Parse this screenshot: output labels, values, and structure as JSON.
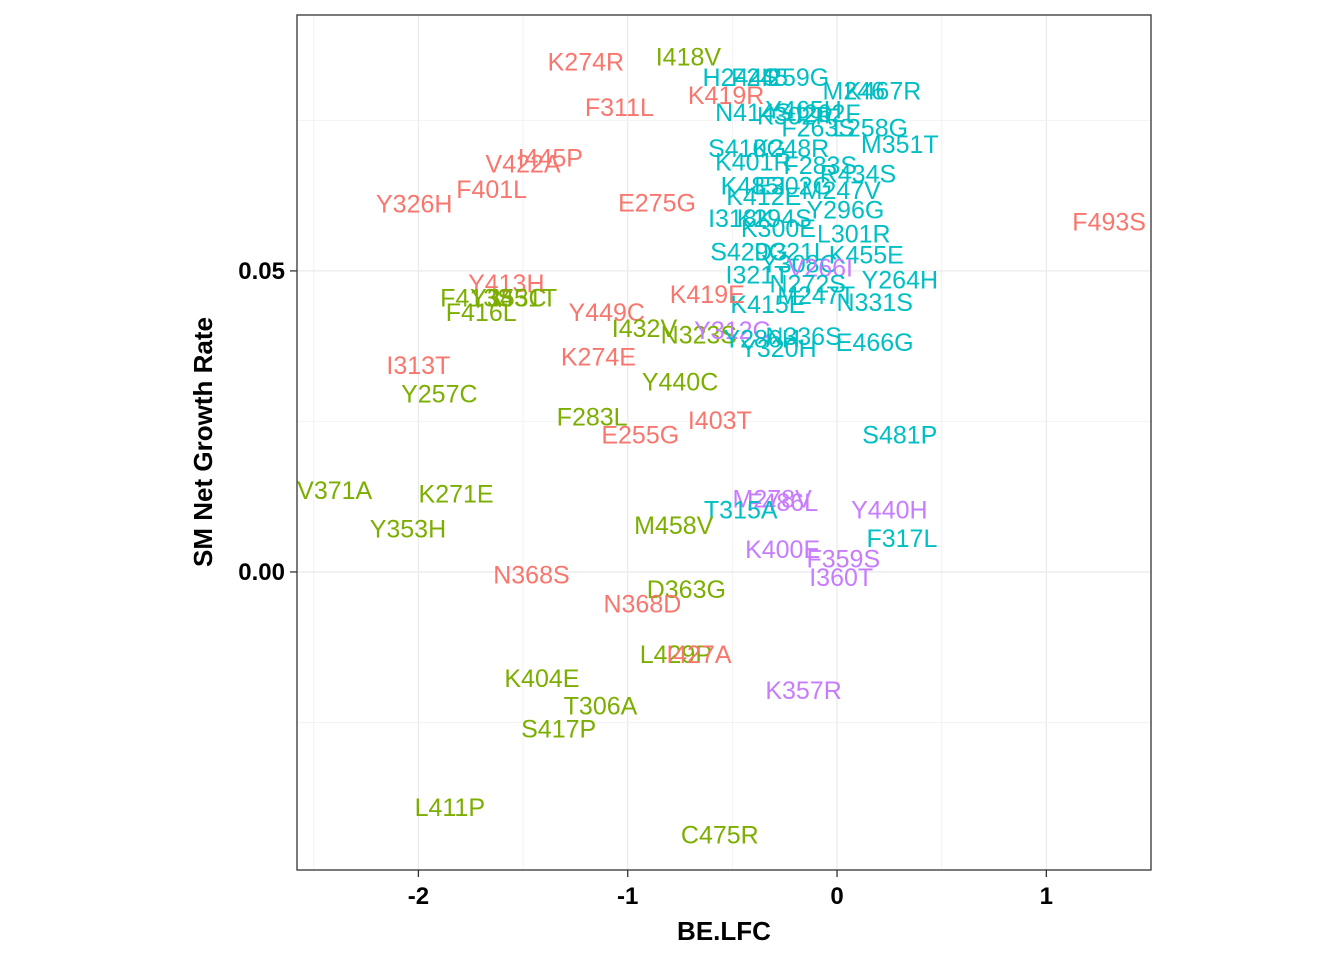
{
  "chart_data": {
    "type": "scatter",
    "title": "",
    "xlabel": "BE.LFC",
    "ylabel": "SM Net Growth Rate",
    "xlim": [
      -2.58,
      1.5
    ],
    "ylim": [
      -0.0495,
      0.0925
    ],
    "xticks": [
      {
        "value": -2,
        "label": "-2"
      },
      {
        "value": -1,
        "label": "-1"
      },
      {
        "value": 0,
        "label": "0"
      },
      {
        "value": 1,
        "label": "1"
      }
    ],
    "yticks": [
      {
        "value": 0.0,
        "label": "0.00"
      },
      {
        "value": 0.05,
        "label": "0.05"
      }
    ],
    "grid": true,
    "legend": "none",
    "colors": {
      "red": "#F8766D",
      "green": "#7CAE00",
      "cyan": "#00BFC4",
      "purple": "#C77CFF"
    },
    "points": [
      {
        "label": "K274R",
        "x": -1.2,
        "y": 0.0848,
        "group": "red"
      },
      {
        "label": "I418V",
        "x": -0.71,
        "y": 0.0856,
        "group": "green"
      },
      {
        "label": "H244S",
        "x": -0.46,
        "y": 0.0822,
        "group": "cyan"
      },
      {
        "label": "F245",
        "x": -0.37,
        "y": 0.0822,
        "group": "cyan"
      },
      {
        "label": "I259G",
        "x": -0.2,
        "y": 0.0822,
        "group": "cyan"
      },
      {
        "label": "M246",
        "x": 0.08,
        "y": 0.08,
        "group": "cyan"
      },
      {
        "label": "K467R",
        "x": 0.22,
        "y": 0.08,
        "group": "cyan"
      },
      {
        "label": "K419R",
        "x": -0.53,
        "y": 0.0792,
        "group": "red"
      },
      {
        "label": "F311L",
        "x": -1.04,
        "y": 0.0772,
        "group": "red"
      },
      {
        "label": "N414S",
        "x": -0.4,
        "y": 0.0764,
        "group": "cyan"
      },
      {
        "label": "Y465H",
        "x": -0.16,
        "y": 0.0768,
        "group": "cyan"
      },
      {
        "label": "K302R",
        "x": -0.2,
        "y": 0.0758,
        "group": "cyan"
      },
      {
        "label": "I262F",
        "x": -0.04,
        "y": 0.0762,
        "group": "cyan"
      },
      {
        "label": "L258G",
        "x": 0.16,
        "y": 0.0738,
        "group": "cyan"
      },
      {
        "label": "F263S",
        "x": -0.09,
        "y": 0.0738,
        "group": "cyan"
      },
      {
        "label": "M351T",
        "x": 0.3,
        "y": 0.0711,
        "group": "cyan"
      },
      {
        "label": "S410G",
        "x": -0.43,
        "y": 0.0704,
        "group": "cyan"
      },
      {
        "label": "K248R",
        "x": -0.22,
        "y": 0.0704,
        "group": "cyan"
      },
      {
        "label": "I445P",
        "x": -1.37,
        "y": 0.0688,
        "group": "red"
      },
      {
        "label": "V422A",
        "x": -1.5,
        "y": 0.0678,
        "group": "red"
      },
      {
        "label": "K401R",
        "x": -0.4,
        "y": 0.0682,
        "group": "cyan"
      },
      {
        "label": "F283S",
        "x": -0.08,
        "y": 0.0676,
        "group": "cyan"
      },
      {
        "label": "R434S",
        "x": 0.1,
        "y": 0.0662,
        "group": "cyan"
      },
      {
        "label": "K485I",
        "x": -0.4,
        "y": 0.0642,
        "group": "cyan"
      },
      {
        "label": "E302G",
        "x": -0.21,
        "y": 0.0642,
        "group": "cyan"
      },
      {
        "label": "M247V",
        "x": 0.02,
        "y": 0.0634,
        "group": "cyan"
      },
      {
        "label": "F401L",
        "x": -1.65,
        "y": 0.0636,
        "group": "red"
      },
      {
        "label": "Y326H",
        "x": -2.02,
        "y": 0.0612,
        "group": "red"
      },
      {
        "label": "E275G",
        "x": -0.86,
        "y": 0.0614,
        "group": "red"
      },
      {
        "label": "K412E",
        "x": -0.35,
        "y": 0.0624,
        "group": "cyan"
      },
      {
        "label": "I318K",
        "x": -0.46,
        "y": 0.0588,
        "group": "cyan"
      },
      {
        "label": "K294S",
        "x": -0.3,
        "y": 0.0588,
        "group": "cyan"
      },
      {
        "label": "Y296G",
        "x": 0.04,
        "y": 0.0602,
        "group": "cyan"
      },
      {
        "label": "F493S",
        "x": 1.3,
        "y": 0.0582,
        "group": "red"
      },
      {
        "label": "K300E",
        "x": -0.28,
        "y": 0.0571,
        "group": "cyan"
      },
      {
        "label": "L301R",
        "x": 0.08,
        "y": 0.0562,
        "group": "cyan"
      },
      {
        "label": "S429G",
        "x": -0.42,
        "y": 0.0532,
        "group": "cyan"
      },
      {
        "label": "D321L",
        "x": -0.22,
        "y": 0.0532,
        "group": "cyan"
      },
      {
        "label": "K455E",
        "x": 0.14,
        "y": 0.0527,
        "group": "cyan"
      },
      {
        "label": "I321T",
        "x": -0.38,
        "y": 0.0494,
        "group": "cyan"
      },
      {
        "label": "Y308C",
        "x": -0.18,
        "y": 0.0512,
        "group": "cyan"
      },
      {
        "label": "V266I",
        "x": -0.08,
        "y": 0.0506,
        "group": "purple"
      },
      {
        "label": "Y264H",
        "x": 0.3,
        "y": 0.0486,
        "group": "cyan"
      },
      {
        "label": "N272S",
        "x": -0.14,
        "y": 0.0479,
        "group": "cyan"
      },
      {
        "label": "K415E",
        "x": -0.33,
        "y": 0.0445,
        "group": "cyan"
      },
      {
        "label": "M247T",
        "x": -0.1,
        "y": 0.046,
        "group": "cyan"
      },
      {
        "label": "N331S",
        "x": 0.18,
        "y": 0.0448,
        "group": "cyan"
      },
      {
        "label": "Y413H",
        "x": -1.58,
        "y": 0.048,
        "group": "red"
      },
      {
        "label": "F413S",
        "x": -1.72,
        "y": 0.0456,
        "group": "green"
      },
      {
        "label": "Y353C",
        "x": -1.57,
        "y": 0.0456,
        "group": "green"
      },
      {
        "label": "I451T",
        "x": -1.49,
        "y": 0.0456,
        "group": "green"
      },
      {
        "label": "K419E",
        "x": -0.62,
        "y": 0.0462,
        "group": "red"
      },
      {
        "label": "F416L",
        "x": -1.7,
        "y": 0.0432,
        "group": "green"
      },
      {
        "label": "Y449C",
        "x": -1.1,
        "y": 0.0432,
        "group": "red"
      },
      {
        "label": "I432V",
        "x": -0.92,
        "y": 0.0405,
        "group": "green"
      },
      {
        "label": "N323S",
        "x": -0.66,
        "y": 0.0394,
        "group": "green"
      },
      {
        "label": "Y312C",
        "x": -0.5,
        "y": 0.0402,
        "group": "purple"
      },
      {
        "label": "Y286H",
        "x": -0.36,
        "y": 0.0388,
        "group": "cyan"
      },
      {
        "label": "N336S",
        "x": -0.16,
        "y": 0.0392,
        "group": "cyan"
      },
      {
        "label": "E466G",
        "x": 0.18,
        "y": 0.0382,
        "group": "cyan"
      },
      {
        "label": "Y320H",
        "x": -0.28,
        "y": 0.0372,
        "group": "cyan"
      },
      {
        "label": "K274E",
        "x": -1.14,
        "y": 0.0358,
        "group": "red"
      },
      {
        "label": "I313T",
        "x": -2.0,
        "y": 0.0344,
        "group": "red"
      },
      {
        "label": "Y440C",
        "x": -0.75,
        "y": 0.0316,
        "group": "green"
      },
      {
        "label": "Y257C",
        "x": -1.9,
        "y": 0.0296,
        "group": "green"
      },
      {
        "label": "F283L",
        "x": -1.17,
        "y": 0.0258,
        "group": "green"
      },
      {
        "label": "I403T",
        "x": -0.56,
        "y": 0.0252,
        "group": "red"
      },
      {
        "label": "E255G",
        "x": -0.94,
        "y": 0.0228,
        "group": "red"
      },
      {
        "label": "S481P",
        "x": 0.3,
        "y": 0.0228,
        "group": "cyan"
      },
      {
        "label": "V371A",
        "x": -2.4,
        "y": 0.0136,
        "group": "green"
      },
      {
        "label": "K271E",
        "x": -1.82,
        "y": 0.013,
        "group": "green"
      },
      {
        "label": "M278V",
        "x": -0.31,
        "y": 0.0122,
        "group": "purple"
      },
      {
        "label": "F486L",
        "x": -0.26,
        "y": 0.0116,
        "group": "purple"
      },
      {
        "label": "T315A",
        "x": -0.46,
        "y": 0.0104,
        "group": "cyan"
      },
      {
        "label": "Y440H",
        "x": 0.25,
        "y": 0.0104,
        "group": "purple"
      },
      {
        "label": "M458V",
        "x": -0.78,
        "y": 0.0078,
        "group": "green"
      },
      {
        "label": "Y353H",
        "x": -2.05,
        "y": 0.0072,
        "group": "green"
      },
      {
        "label": "F317L",
        "x": 0.31,
        "y": 0.0056,
        "group": "cyan"
      },
      {
        "label": "K400E",
        "x": -0.26,
        "y": 0.0038,
        "group": "purple"
      },
      {
        "label": "F359S",
        "x": 0.03,
        "y": 0.0022,
        "group": "purple"
      },
      {
        "label": "I360T",
        "x": 0.02,
        "y": -0.0008,
        "group": "purple"
      },
      {
        "label": "N368S",
        "x": -1.46,
        "y": -0.0004,
        "group": "red"
      },
      {
        "label": "D363G",
        "x": -0.72,
        "y": -0.0028,
        "group": "green"
      },
      {
        "label": "N368D",
        "x": -0.93,
        "y": -0.0052,
        "group": "red"
      },
      {
        "label": "L429P",
        "x": -0.77,
        "y": -0.0136,
        "group": "green"
      },
      {
        "label": "I427A",
        "x": -0.66,
        "y": -0.0136,
        "group": "red"
      },
      {
        "label": "K404E",
        "x": -1.41,
        "y": -0.0176,
        "group": "green"
      },
      {
        "label": "K357R",
        "x": -0.16,
        "y": -0.0196,
        "group": "purple"
      },
      {
        "label": "T306A",
        "x": -1.13,
        "y": -0.0222,
        "group": "green"
      },
      {
        "label": "S417P",
        "x": -1.33,
        "y": -0.026,
        "group": "green"
      },
      {
        "label": "L411P",
        "x": -1.85,
        "y": -0.039,
        "group": "green"
      },
      {
        "label": "C475R",
        "x": -0.56,
        "y": -0.0436,
        "group": "green"
      }
    ]
  }
}
